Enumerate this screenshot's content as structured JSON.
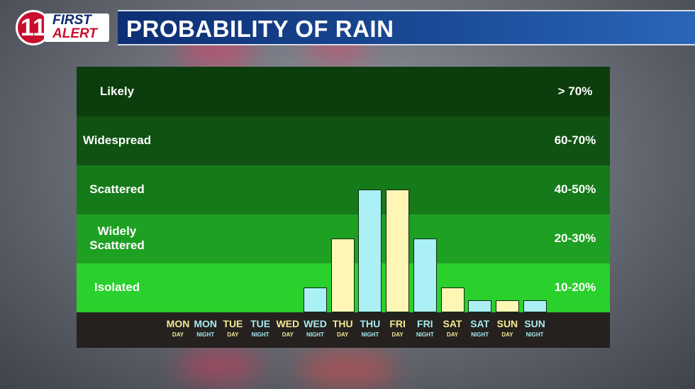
{
  "logo": {
    "number": "11",
    "line1": "FIRST",
    "line2": "ALERT"
  },
  "title": "PROBABILITY OF RAIN",
  "colors": {
    "day_bar": "#fdf6b4",
    "night_bar": "#aaf0f4",
    "day_label": "#f4e894",
    "night_label": "#a7e9ee"
  },
  "chart_data": {
    "type": "bar",
    "title": "PROBABILITY OF RAIN",
    "categories": [
      {
        "day": "MON",
        "period": "DAY"
      },
      {
        "day": "MON",
        "period": "NIGHT"
      },
      {
        "day": "TUE",
        "period": "DAY"
      },
      {
        "day": "TUE",
        "period": "NIGHT"
      },
      {
        "day": "WED",
        "period": "DAY"
      },
      {
        "day": "WED",
        "period": "NIGHT"
      },
      {
        "day": "THU",
        "period": "DAY"
      },
      {
        "day": "THU",
        "period": "NIGHT"
      },
      {
        "day": "FRI",
        "period": "DAY"
      },
      {
        "day": "FRI",
        "period": "NIGHT"
      },
      {
        "day": "SAT",
        "period": "DAY"
      },
      {
        "day": "SAT",
        "period": "NIGHT"
      },
      {
        "day": "SUN",
        "period": "DAY"
      },
      {
        "day": "SUN",
        "period": "NIGHT"
      }
    ],
    "values": [
      0,
      0,
      0,
      0,
      0,
      10,
      30,
      50,
      50,
      30,
      10,
      5,
      5,
      5
    ],
    "ylim": [
      0,
      70
    ],
    "bands": [
      {
        "label": "Likely",
        "range": "> 70%",
        "color": "#0c3d0c"
      },
      {
        "label": "Widespread",
        "range": "60-70%",
        "color": "#0f5212"
      },
      {
        "label": "Scattered",
        "range": "40-50%",
        "color": "#157a19"
      },
      {
        "label": "Widely\nScattered",
        "range": "20-30%",
        "color": "#1ea023"
      },
      {
        "label": "Isolated",
        "range": "10-20%",
        "color": "#2ad02c"
      }
    ]
  }
}
